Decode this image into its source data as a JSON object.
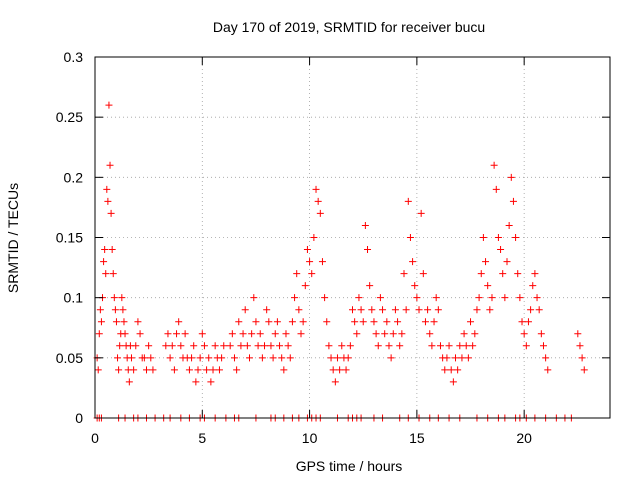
{
  "chart_data": {
    "type": "scatter",
    "title": "Day 170 of 2019, SRMTID for receiver bucu",
    "xlabel": "GPS time / hours",
    "ylabel": "SRMTID / TECUs",
    "xlim": [
      0,
      24
    ],
    "ylim": [
      0,
      0.3
    ],
    "xticks": [
      0,
      5,
      10,
      15,
      20
    ],
    "xtick_labels": [
      "0",
      "5",
      "10",
      "15",
      "20"
    ],
    "yticks": [
      0,
      0.05,
      0.1,
      0.15,
      0.2,
      0.25,
      0.3
    ],
    "ytick_labels": [
      "0",
      "0.05",
      "0.1",
      "0.15",
      "0.2",
      "0.25",
      "0.3"
    ],
    "grid": true,
    "marker": "+",
    "color": "#ff0000",
    "series": [
      {
        "name": "SRMTID",
        "x": [
          0.1,
          0.15,
          0.2,
          0.25,
          0.3,
          0.35,
          0.4,
          0.45,
          0.5,
          0.55,
          0.6,
          0.65,
          0.7,
          0.75,
          0.8,
          0.85,
          0.9,
          0.95,
          1.0,
          1.05,
          1.1,
          1.15,
          1.2,
          1.25,
          1.3,
          1.35,
          1.4,
          1.45,
          1.5,
          1.55,
          1.6,
          1.65,
          1.7,
          1.8,
          1.9,
          2.0,
          2.1,
          2.2,
          2.3,
          2.4,
          2.5,
          2.6,
          2.7,
          3.3,
          3.4,
          3.5,
          3.6,
          3.7,
          3.8,
          3.9,
          4.0,
          4.1,
          4.2,
          4.3,
          4.4,
          4.5,
          4.6,
          4.7,
          4.8,
          4.9,
          5.0,
          5.1,
          5.2,
          5.3,
          5.4,
          5.5,
          5.6,
          5.7,
          5.8,
          5.9,
          6.0,
          6.3,
          6.4,
          6.5,
          6.6,
          6.7,
          6.8,
          6.9,
          7.0,
          7.1,
          7.2,
          7.3,
          7.4,
          7.5,
          7.6,
          7.7,
          7.8,
          7.9,
          8.0,
          8.1,
          8.2,
          8.3,
          8.4,
          8.5,
          8.6,
          8.7,
          8.8,
          8.9,
          9.0,
          9.1,
          9.2,
          9.3,
          9.4,
          9.5,
          9.6,
          9.7,
          9.8,
          9.9,
          10.0,
          10.1,
          10.2,
          10.3,
          10.4,
          10.5,
          10.6,
          10.7,
          10.8,
          10.9,
          11.0,
          11.1,
          11.2,
          11.3,
          11.4,
          11.5,
          11.6,
          11.7,
          11.8,
          11.9,
          12.0,
          12.1,
          12.2,
          12.3,
          12.4,
          12.5,
          12.6,
          12.7,
          12.8,
          12.9,
          13.0,
          13.1,
          13.2,
          13.3,
          13.4,
          13.5,
          13.6,
          13.7,
          13.8,
          13.9,
          14.0,
          14.1,
          14.2,
          14.3,
          14.4,
          14.5,
          14.6,
          14.7,
          14.8,
          14.9,
          15.0,
          15.1,
          15.2,
          15.3,
          15.4,
          15.5,
          15.6,
          15.7,
          15.8,
          15.9,
          16.0,
          16.1,
          16.2,
          16.3,
          16.4,
          16.5,
          16.6,
          16.7,
          16.8,
          16.9,
          17.0,
          17.1,
          17.2,
          17.3,
          17.4,
          17.5,
          17.6,
          17.7,
          17.8,
          17.9,
          18.0,
          18.1,
          18.2,
          18.3,
          18.4,
          18.5,
          18.6,
          18.7,
          18.8,
          18.9,
          19.0,
          19.1,
          19.2,
          19.3,
          19.4,
          19.5,
          19.6,
          19.7,
          19.8,
          19.9,
          20.0,
          20.1,
          20.2,
          20.3,
          20.4,
          20.5,
          20.6,
          20.7,
          20.8,
          20.9,
          21.0,
          21.1,
          22.5,
          22.6,
          22.7,
          22.8
        ],
        "y": [
          0.05,
          0.04,
          0.07,
          0.09,
          0.08,
          0.1,
          0.13,
          0.14,
          0.12,
          0.19,
          0.18,
          0.26,
          0.21,
          0.17,
          0.14,
          0.12,
          0.1,
          0.09,
          0.08,
          0.05,
          0.04,
          0.06,
          0.07,
          0.1,
          0.09,
          0.08,
          0.07,
          0.06,
          0.05,
          0.04,
          0.03,
          0.06,
          0.05,
          0.04,
          0.06,
          0.08,
          0.07,
          0.05,
          0.05,
          0.04,
          0.06,
          0.05,
          0.04,
          0.06,
          0.07,
          0.05,
          0.06,
          0.04,
          0.07,
          0.08,
          0.06,
          0.05,
          0.07,
          0.05,
          0.04,
          0.05,
          0.06,
          0.03,
          0.04,
          0.05,
          0.07,
          0.06,
          0.04,
          0.05,
          0.03,
          0.04,
          0.06,
          0.05,
          0.04,
          0.05,
          0.06,
          0.06,
          0.07,
          0.05,
          0.04,
          0.08,
          0.06,
          0.07,
          0.09,
          0.06,
          0.05,
          0.07,
          0.1,
          0.08,
          0.06,
          0.07,
          0.05,
          0.06,
          0.09,
          0.08,
          0.06,
          0.05,
          0.07,
          0.08,
          0.06,
          0.05,
          0.04,
          0.07,
          0.06,
          0.05,
          0.08,
          0.1,
          0.12,
          0.09,
          0.07,
          0.08,
          0.11,
          0.14,
          0.13,
          0.12,
          0.15,
          0.19,
          0.18,
          0.17,
          0.13,
          0.1,
          0.08,
          0.06,
          0.05,
          0.04,
          0.03,
          0.05,
          0.04,
          0.06,
          0.05,
          0.04,
          0.05,
          0.06,
          0.09,
          0.08,
          0.07,
          0.1,
          0.09,
          0.08,
          0.16,
          0.14,
          0.11,
          0.09,
          0.08,
          0.07,
          0.06,
          0.1,
          0.09,
          0.07,
          0.08,
          0.06,
          0.05,
          0.07,
          0.09,
          0.08,
          0.06,
          0.07,
          0.12,
          0.09,
          0.18,
          0.15,
          0.13,
          0.11,
          0.1,
          0.09,
          0.17,
          0.12,
          0.08,
          0.09,
          0.07,
          0.06,
          0.08,
          0.1,
          0.09,
          0.06,
          0.05,
          0.04,
          0.05,
          0.06,
          0.04,
          0.03,
          0.05,
          0.04,
          0.06,
          0.05,
          0.07,
          0.06,
          0.05,
          0.08,
          0.06,
          0.07,
          0.09,
          0.1,
          0.12,
          0.15,
          0.13,
          0.11,
          0.09,
          0.1,
          0.21,
          0.19,
          0.15,
          0.14,
          0.12,
          0.1,
          0.13,
          0.16,
          0.2,
          0.18,
          0.15,
          0.12,
          0.1,
          0.08,
          0.07,
          0.06,
          0.08,
          0.09,
          0.11,
          0.12,
          0.1,
          0.09,
          0.07,
          0.06,
          0.05,
          0.04,
          0.07,
          0.06,
          0.05,
          0.04
        ],
        "zero_x": [
          0.1,
          0.2,
          0.3,
          1.1,
          1.4,
          1.8,
          2.0,
          2.4,
          2.8,
          3.2,
          3.5,
          4.0,
          4.4,
          4.9,
          5.1,
          5.6,
          6.1,
          6.5,
          6.7,
          7.5,
          8.2,
          8.4,
          8.8,
          9.2,
          9.5,
          9.9,
          10.1,
          10.3,
          10.5,
          11.3,
          11.8,
          12.0,
          12.2,
          12.4,
          13.0,
          13.4,
          14.2,
          14.6,
          15.1,
          15.6,
          16.0,
          16.5,
          17.0,
          17.8,
          18.3,
          18.8,
          19.1,
          19.6,
          19.8,
          20.1,
          20.5,
          21.0,
          21.5,
          21.9,
          22.2
        ]
      }
    ]
  }
}
